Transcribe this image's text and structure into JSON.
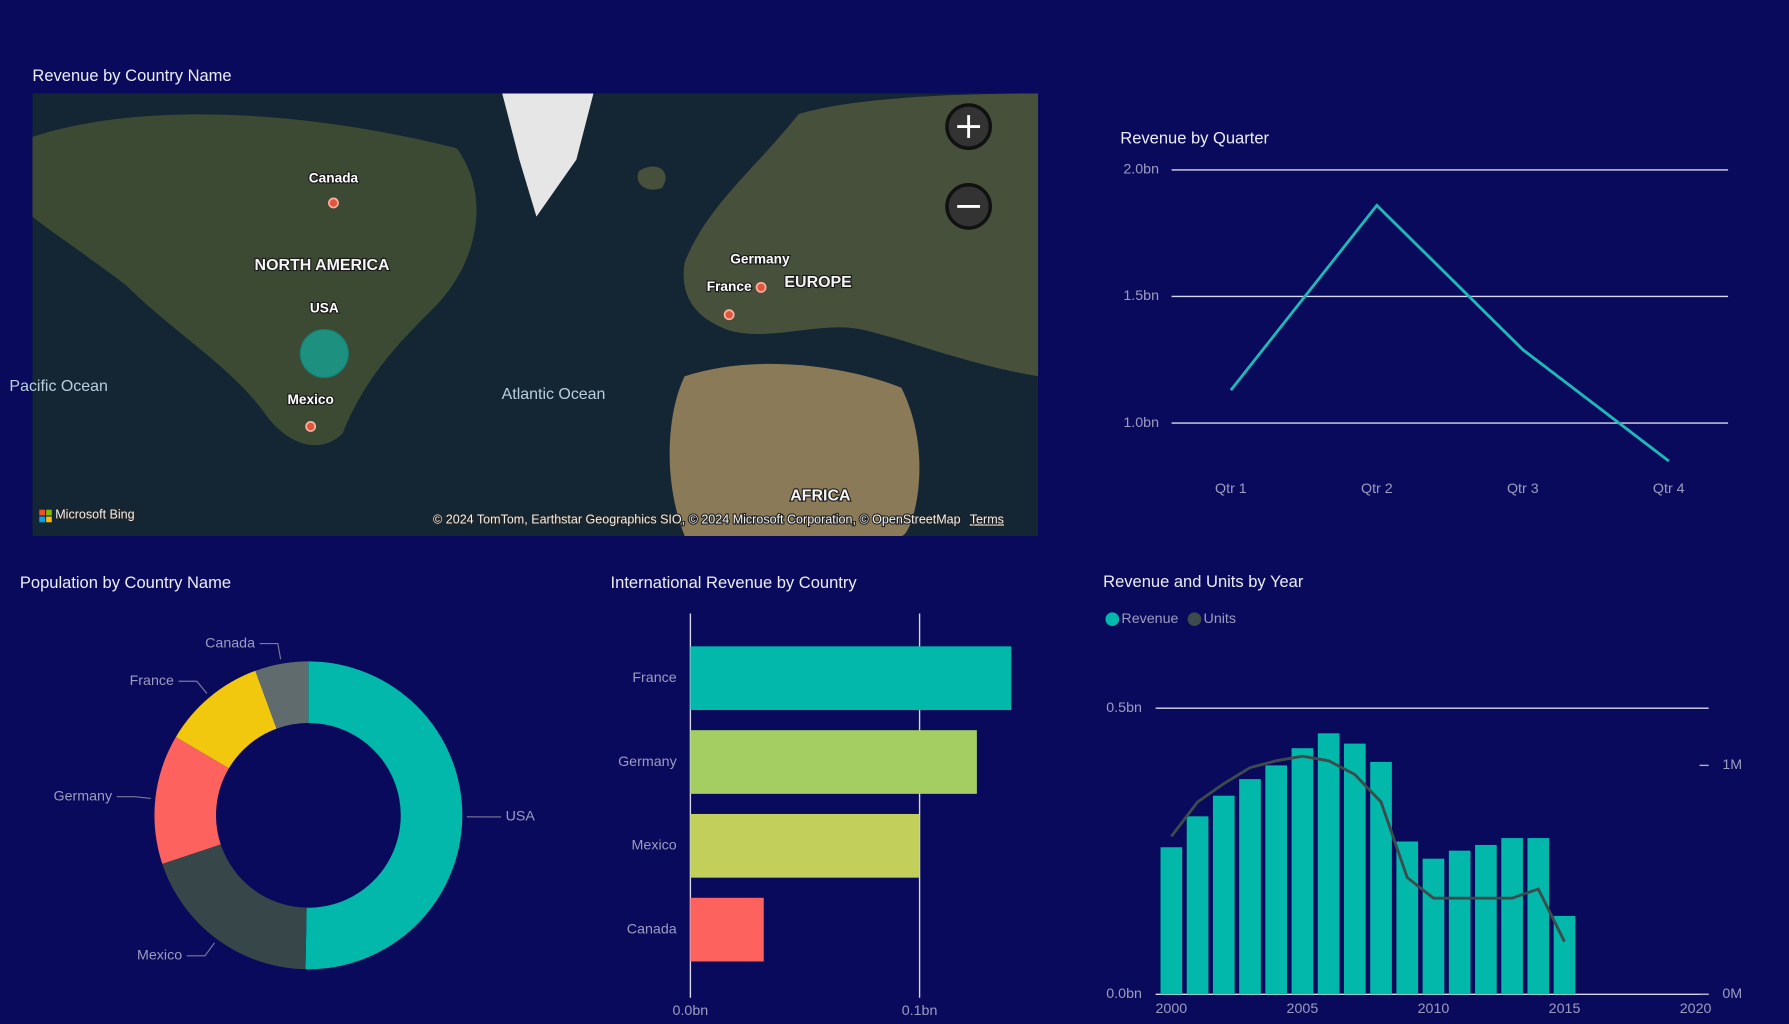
{
  "chart_data": [
    {
      "type": "map",
      "title": "Revenue by Country Name",
      "categories": [
        "Canada",
        "USA",
        "Mexico",
        "Germany",
        "France"
      ],
      "colors": [
        "#e0553c",
        "#14a89a",
        "#e0553c",
        "#e0553c",
        "#e0553c"
      ],
      "places": [
        "NORTH AMERICA",
        "EUROPE",
        "AFRICA",
        "Pacific Ocean",
        "Atlantic Ocean"
      ],
      "logo": "Microsoft Bing",
      "attribution": "© 2024 TomTom, Earthstar Geographics SIO, © 2024 Microsoft Corporation, © OpenStreetMap",
      "terms": "Terms"
    },
    {
      "type": "line",
      "title": "Revenue by Quarter",
      "categories": [
        "Qtr 1",
        "Qtr 2",
        "Qtr 3",
        "Qtr 4"
      ],
      "values": [
        1.13,
        1.86,
        1.29,
        0.85
      ],
      "color": "#1fb8b8",
      "ylim": [
        0.8,
        2.0
      ],
      "yticks": [
        {
          "value": 1.0,
          "label": "1.0bn"
        },
        {
          "value": 1.5,
          "label": "1.5bn"
        },
        {
          "value": 2.0,
          "label": "2.0bn"
        }
      ],
      "grid": true
    },
    {
      "type": "donut",
      "title": "Population by Country Name",
      "categories": [
        "USA",
        "Mexico",
        "Germany",
        "France",
        "Canada"
      ],
      "values": [
        50.3,
        19.6,
        13.6,
        10.9,
        5.6
      ],
      "colors": [
        "#01b8aa",
        "#374649",
        "#fd625e",
        "#f2c80f",
        "#5f6b6d"
      ]
    },
    {
      "type": "bar",
      "horizontal": true,
      "title": "International Revenue by Country",
      "categories": [
        "France",
        "Germany",
        "Mexico",
        "Canada"
      ],
      "values": [
        0.14,
        0.125,
        0.1,
        0.032
      ],
      "colors": [
        "#01b8aa",
        "#a4cd62",
        "#c3cf5b",
        "#fd625e"
      ],
      "xlim": [
        0,
        0.14
      ],
      "xticks": [
        {
          "value": 0,
          "label": "0.0bn"
        },
        {
          "value": 0.1,
          "label": "0.1bn"
        }
      ],
      "grid": true
    },
    {
      "type": "combo",
      "title": "Revenue and Units by Year",
      "x": [
        2000,
        2001,
        2002,
        2003,
        2004,
        2005,
        2006,
        2007,
        2008,
        2009,
        2010,
        2011,
        2012,
        2013,
        2014,
        2015
      ],
      "series": [
        {
          "name": "Revenue",
          "type": "bar",
          "color": "#01b8aa",
          "values": [
            0.257,
            0.311,
            0.347,
            0.376,
            0.4,
            0.43,
            0.456,
            0.438,
            0.406,
            0.267,
            0.237,
            0.251,
            0.261,
            0.273,
            0.273,
            0.137
          ]
        },
        {
          "name": "Units",
          "type": "line",
          "axis": "y2",
          "color": "#3d4b4c",
          "values": [
            0.69,
            0.84,
            0.92,
            0.99,
            1.02,
            1.04,
            1.02,
            0.96,
            0.84,
            0.51,
            0.42,
            0.42,
            0.42,
            0.42,
            0.46,
            0.23
          ]
        }
      ],
      "xlim": [
        1999.4,
        2020.5
      ],
      "xticks": [
        2000,
        2005,
        2010,
        2015,
        2020
      ],
      "ylim": [
        0,
        0.5
      ],
      "yticks": [
        {
          "value": 0,
          "label": "0.0bn"
        },
        {
          "value": 0.5,
          "label": "0.5bn"
        }
      ],
      "y2lim": [
        0,
        1.25
      ],
      "y2ticks": [
        {
          "value": 0,
          "label": "0M"
        },
        {
          "value": 1,
          "label": "1M"
        }
      ],
      "grid": true,
      "legend": "top-left"
    }
  ]
}
